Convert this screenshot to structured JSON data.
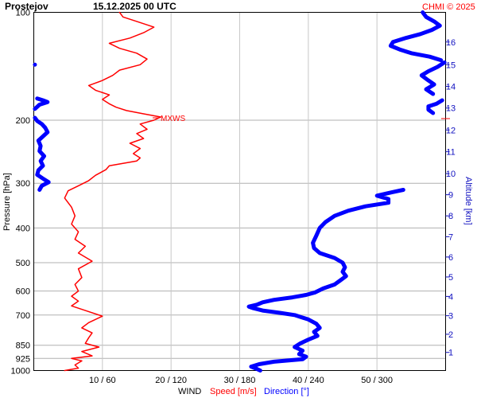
{
  "header": {
    "station": "Prostejov",
    "datetime": "15.12.2025 00 UTC",
    "copyright": "CHMI © 2025"
  },
  "chart_data": {
    "type": "line",
    "y_axis": {
      "label": "Pressure [hPa]",
      "scale": "log",
      "range": [
        1000,
        100
      ],
      "ticks": [
        100,
        200,
        300,
        400,
        500,
        600,
        700,
        850,
        925,
        1000
      ]
    },
    "y2_axis": {
      "label": "Altitude [km]",
      "ticks": [
        {
          "label": "1",
          "p": 890
        },
        {
          "label": "2",
          "p": 792
        },
        {
          "label": "3",
          "p": 703
        },
        {
          "label": "4",
          "p": 621
        },
        {
          "label": "5",
          "p": 548
        },
        {
          "label": "6",
          "p": 482
        },
        {
          "label": "7",
          "p": 423
        },
        {
          "label": "8",
          "p": 370
        },
        {
          "label": "9",
          "p": 323
        },
        {
          "label": "10",
          "p": 282
        },
        {
          "label": "11",
          "p": 245
        },
        {
          "label": "12",
          "p": 213
        },
        {
          "label": "13",
          "p": 185
        },
        {
          "label": "14",
          "p": 161
        },
        {
          "label": "15",
          "p": 140
        },
        {
          "label": "16",
          "p": 121
        }
      ]
    },
    "x_axis": {
      "label": "WIND",
      "speed_label": "Speed [m/s]",
      "direction_label": "Direction [°]",
      "speed_range": [
        0,
        60
      ],
      "direction_range": [
        0,
        360
      ],
      "ticks": [
        "10 / 60",
        "20 / 120",
        "30 / 180",
        "40 / 240",
        "50 / 300"
      ]
    },
    "annotation": {
      "label": "MXWS",
      "p": 197
    },
    "series": [
      {
        "name": "Speed [m/s]",
        "color": "#ff0000",
        "points": [
          [
            1000,
            4.5
          ],
          [
            985,
            6.5
          ],
          [
            965,
            6.0
          ],
          [
            940,
            7.0
          ],
          [
            925,
            5.5
          ],
          [
            910,
            8.5
          ],
          [
            885,
            7.0
          ],
          [
            860,
            9.5
          ],
          [
            840,
            7.5
          ],
          [
            810,
            8.0
          ],
          [
            785,
            8.5
          ],
          [
            760,
            7.0
          ],
          [
            735,
            8.0
          ],
          [
            705,
            10.0
          ],
          [
            680,
            7.5
          ],
          [
            660,
            5.5
          ],
          [
            640,
            6.5
          ],
          [
            620,
            5.5
          ],
          [
            600,
            6.5
          ],
          [
            575,
            6.0
          ],
          [
            550,
            7.0
          ],
          [
            520,
            6.5
          ],
          [
            495,
            8.5
          ],
          [
            470,
            6.5
          ],
          [
            450,
            7.5
          ],
          [
            430,
            6.0
          ],
          [
            410,
            6.5
          ],
          [
            390,
            5.5
          ],
          [
            370,
            6.0
          ],
          [
            350,
            5.5
          ],
          [
            330,
            4.5
          ],
          [
            315,
            5.0
          ],
          [
            305,
            6.5
          ],
          [
            295,
            8.0
          ],
          [
            285,
            9.0
          ],
          [
            275,
            10.5
          ],
          [
            268,
            11.0
          ],
          [
            264,
            13.0
          ],
          [
            260,
            15.0
          ],
          [
            255,
            15.5
          ],
          [
            248,
            14.5
          ],
          [
            240,
            15.5
          ],
          [
            232,
            14.0
          ],
          [
            225,
            16.0
          ],
          [
            218,
            15.0
          ],
          [
            212,
            16.5
          ],
          [
            205,
            15.5
          ],
          [
            200,
            17.5
          ],
          [
            196,
            18.5
          ],
          [
            192,
            16.0
          ],
          [
            188,
            13.5
          ],
          [
            184,
            12.0
          ],
          [
            180,
            11.0
          ],
          [
            175,
            10.0
          ],
          [
            170,
            11.0
          ],
          [
            165,
            9.0
          ],
          [
            160,
            8.0
          ],
          [
            155,
            10.0
          ],
          [
            150,
            11.5
          ],
          [
            145,
            12.5
          ],
          [
            140,
            15.5
          ],
          [
            135,
            16.5
          ],
          [
            130,
            15.0
          ],
          [
            126,
            12.5
          ],
          [
            122,
            11.0
          ],
          [
            118,
            14.0
          ],
          [
            114,
            16.0
          ],
          [
            110,
            17.5
          ],
          [
            106,
            15.0
          ],
          [
            103,
            13.0
          ],
          [
            100,
            12.5
          ]
        ]
      },
      {
        "name": "Direction [°]",
        "color": "#0000ff",
        "points": [
          [
            1000,
            198
          ],
          [
            990,
            195
          ],
          [
            975,
            190
          ],
          [
            960,
            197
          ],
          [
            945,
            210
          ],
          [
            930,
            235
          ],
          [
            915,
            238
          ],
          [
            900,
            232
          ],
          [
            880,
            235
          ],
          [
            860,
            228
          ],
          [
            840,
            233
          ],
          [
            820,
            240
          ],
          [
            800,
            248
          ],
          [
            780,
            245
          ],
          [
            760,
            250
          ],
          [
            740,
            247
          ],
          [
            720,
            240
          ],
          [
            700,
            228
          ],
          [
            690,
            215
          ],
          [
            680,
            200
          ],
          [
            670,
            192
          ],
          [
            663,
            188
          ],
          [
            655,
            195
          ],
          [
            645,
            200
          ],
          [
            635,
            210
          ],
          [
            625,
            226
          ],
          [
            615,
            238
          ],
          [
            605,
            246
          ],
          [
            590,
            253
          ],
          [
            575,
            263
          ],
          [
            560,
            268
          ],
          [
            545,
            273
          ],
          [
            530,
            270
          ],
          [
            515,
            272
          ],
          [
            500,
            270
          ],
          [
            485,
            263
          ],
          [
            470,
            250
          ],
          [
            455,
            245
          ],
          [
            440,
            244
          ],
          [
            420,
            247
          ],
          [
            400,
            250
          ],
          [
            385,
            255
          ],
          [
            370,
            263
          ],
          [
            358,
            275
          ],
          [
            348,
            290
          ],
          [
            340,
            310
          ],
          [
            332,
            310
          ],
          [
            325,
            300
          ],
          [
            318,
            313
          ],
          [
            313,
            323
          ]
        ]
      },
      {
        "name": "Direction [°]",
        "color": "#0000ff",
        "points": [
          [
            313,
            5
          ],
          [
            305,
            7
          ],
          [
            298,
            13
          ],
          [
            291,
            8
          ],
          [
            284,
            3
          ],
          [
            276,
            4
          ],
          [
            268,
            8
          ],
          [
            260,
            6
          ],
          [
            252,
            9
          ],
          [
            244,
            5
          ],
          [
            236,
            6
          ],
          [
            228,
            4
          ],
          [
            222,
            8
          ],
          [
            216,
            12
          ],
          [
            210,
            10
          ],
          [
            205,
            7
          ],
          [
            201,
            3
          ],
          [
            197,
            1
          ]
        ]
      },
      {
        "name": "Direction [°]",
        "color": "#0000ff",
        "points": [
          [
            186,
            1
          ],
          [
            181,
            5
          ],
          [
            178,
            12
          ],
          [
            176,
            8
          ],
          [
            174,
            3
          ]
        ]
      },
      {
        "name": "Direction [°]",
        "color": "#0000ff",
        "points": [
          [
            140,
            1
          ]
        ]
      },
      {
        "name": "Direction [°]",
        "color": "#0000ff",
        "points": [
          [
            191,
            349
          ],
          [
            187,
            345
          ],
          [
            183,
            345
          ],
          [
            180,
            352
          ],
          [
            176,
            357
          ]
        ]
      },
      {
        "name": "Direction [°]",
        "color": "#0000ff",
        "points": [
          [
            169,
            349
          ],
          [
            164,
            343
          ],
          [
            159,
            350
          ],
          [
            155,
            345
          ],
          [
            150,
            339
          ],
          [
            146,
            345
          ],
          [
            142,
            353
          ],
          [
            138,
            359
          ]
        ]
      },
      {
        "name": "Direction [°]",
        "color": "#0000ff",
        "points": [
          [
            136,
            356
          ],
          [
            133,
            346
          ],
          [
            130,
            330
          ],
          [
            127,
            320
          ],
          [
            124,
            312
          ],
          [
            121,
            314
          ],
          [
            118,
            325
          ],
          [
            115,
            338
          ],
          [
            112,
            348
          ],
          [
            109,
            355
          ],
          [
            106,
            350
          ],
          [
            103,
            343
          ],
          [
            100,
            340
          ]
        ]
      }
    ]
  }
}
